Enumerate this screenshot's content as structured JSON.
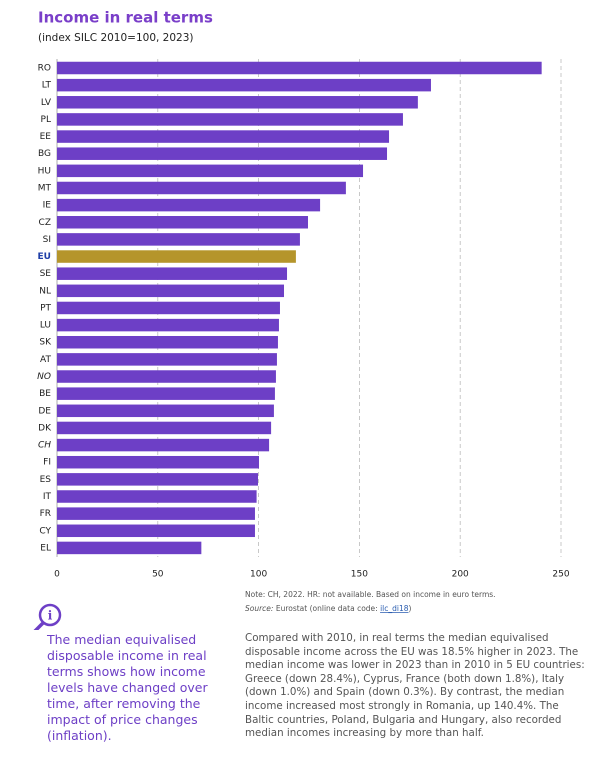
{
  "chart_data": {
    "type": "barh",
    "title": "Income in real terms",
    "subtitle": "(index SILC 2010=100, 2023)",
    "categories": [
      "RO",
      "LT",
      "LV",
      "PL",
      "EE",
      "BG",
      "HU",
      "MT",
      "IE",
      "CZ",
      "SI",
      "EU",
      "SE",
      "NL",
      "PT",
      "LU",
      "SK",
      "AT",
      "NO",
      "BE",
      "DE",
      "DK",
      "CH",
      "FI",
      "ES",
      "IT",
      "FR",
      "CY",
      "EL"
    ],
    "values": [
      240.4,
      185.5,
      179,
      171.6,
      164.7,
      163.7,
      151.8,
      143.3,
      130.5,
      124.5,
      120.5,
      118.5,
      114.1,
      112.6,
      110.6,
      110.1,
      109.6,
      109.1,
      108.6,
      108.1,
      107.6,
      106.2,
      105.2,
      100.2,
      99.7,
      99.0,
      98.2,
      98.2,
      71.6
    ],
    "color": "#6d3fc6",
    "highlight": {
      "category": "EU",
      "color": "#b5952b",
      "label_color": "#1f3fa8"
    },
    "italic_categories": [
      "NO",
      "CH"
    ],
    "xlim": [
      0,
      250
    ],
    "xticks": [
      0,
      50,
      100,
      150,
      200,
      250
    ],
    "grid": true,
    "note": "Note: CH, 2022. HR: not available. Based on income in euro terms.",
    "source": [
      "Source:",
      " Eurostat (online data code: ",
      "ilc_di18",
      ")"
    ]
  },
  "sidebar": "The median equivalised disposable income in real terms shows how income levels have changed over time, after removing the impact of price changes (inflation).",
  "body": "Compared with 2010, in real terms the median equivalised disposable income across the EU was 18.5% higher in 2023. The median income was lower in 2023 than in 2010 in 5 EU countries: Greece (down 28.4%), Cyprus, France (both down 1.8%), Italy (down 1.0%) and Spain (down 0.3%). By contrast, the median income increased most strongly in Romania, up 140.4%. The Baltic countries, Poland, Bulgaria and Hungary, also recorded median incomes increasing by more than half."
}
